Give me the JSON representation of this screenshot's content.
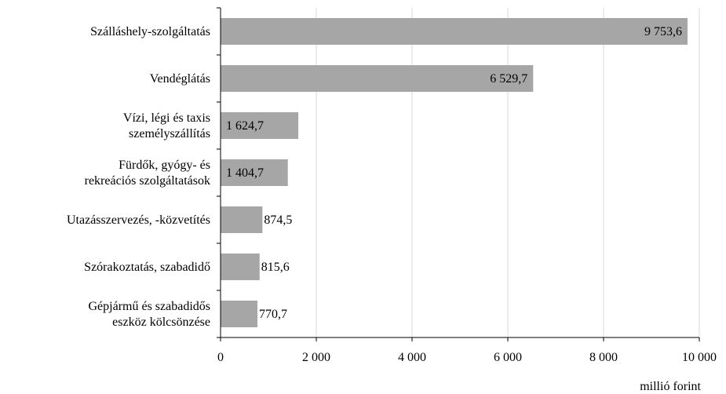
{
  "chart_data": {
    "type": "bar",
    "orientation": "horizontal",
    "categories": [
      [
        "Szálláshely-szolgáltatás"
      ],
      [
        "Vendéglátás"
      ],
      [
        "Vízi, légi és taxis",
        "személyszállítás"
      ],
      [
        "Fürdők, gyógy- és",
        "rekreációs szolgáltatások"
      ],
      [
        "Utazásszervezés, -közvetítés"
      ],
      [
        "Szórakoztatás, szabadidő"
      ],
      [
        "Gépjármű és szabadidős",
        "eszköz kölcsönzése"
      ]
    ],
    "values": [
      9753.6,
      6529.7,
      1624.7,
      1404.7,
      874.5,
      815.6,
      770.7
    ],
    "value_labels": [
      "9 753,6",
      "6 529,7",
      "1 624,7",
      "1 404,7",
      "874,5",
      "815,6",
      "770,7"
    ],
    "xlim": [
      0,
      10000
    ],
    "xticks": [
      0,
      2000,
      4000,
      6000,
      8000,
      10000
    ],
    "xtick_labels": [
      "0",
      "2 000",
      "4 000",
      "6 000",
      "8 000",
      "10 000"
    ],
    "xlabel": "millió forint",
    "ylabel": "",
    "grid": "vertical",
    "colors": {
      "bar": "#a6a6a6",
      "grid": "#d9d9d9",
      "axis": "#000000"
    }
  }
}
